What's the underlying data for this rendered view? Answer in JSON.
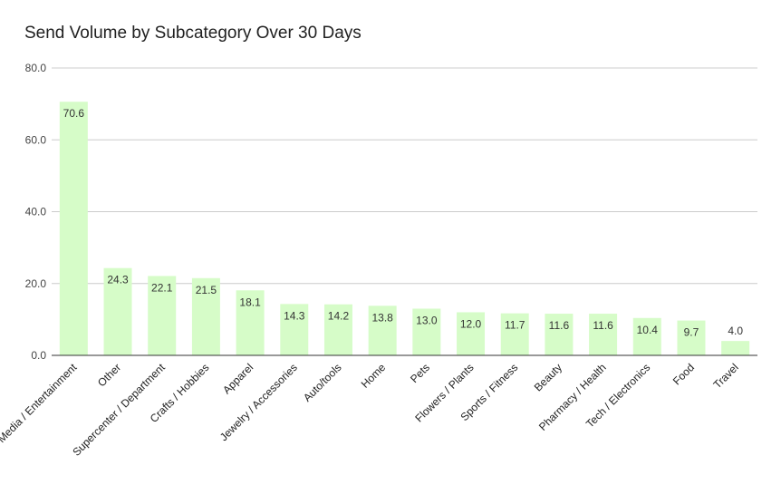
{
  "chart_data": {
    "type": "bar",
    "title": "Send Volume by Subcategory Over 30 Days",
    "xlabel": "",
    "ylabel": "",
    "ylim": [
      0,
      80
    ],
    "yticks": [
      "0.0",
      "20.0",
      "40.0",
      "60.0",
      "80.0"
    ],
    "grid": true,
    "legend": "none",
    "bar_color": "#d6fcc8",
    "categories": [
      "Media / Entertainment",
      "Other",
      "Supercenter / Department",
      "Crafts / Hobbies",
      "Apparel",
      "Jewelry / Accessories",
      "Auto/tools",
      "Home",
      "Pets",
      "Flowers / Plants",
      "Sports / Fitness",
      "Beauty",
      "Pharmacy / Health",
      "Tech / Electronics",
      "Food",
      "Travel"
    ],
    "values": [
      70.6,
      24.3,
      22.1,
      21.5,
      18.1,
      14.3,
      14.2,
      13.8,
      13.0,
      12.0,
      11.7,
      11.6,
      11.6,
      10.4,
      9.7,
      4.0
    ],
    "data_labels": [
      "70.6",
      "24.3",
      "22.1",
      "21.5",
      "18.1",
      "14.3",
      "14.2",
      "13.8",
      "13.0",
      "12.0",
      "11.7",
      "11.6",
      "11.6",
      "10.4",
      "9.7",
      "4.0"
    ]
  }
}
